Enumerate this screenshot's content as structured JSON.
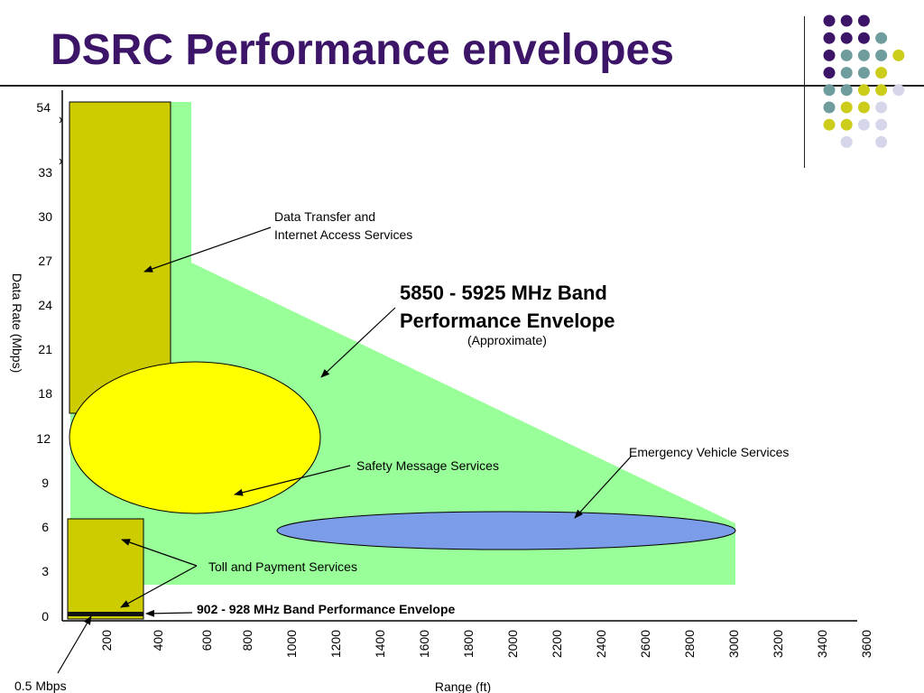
{
  "slide": {
    "title": "DSRC Performance envelopes"
  },
  "y_axis": {
    "label": "Data Rate (Mbps)",
    "ticks": [
      "0",
      "3",
      "6",
      "9",
      "12",
      "18",
      "21",
      "24",
      "27",
      "30",
      "33",
      "54"
    ]
  },
  "x_axis": {
    "label": "Range (ft)",
    "ticks": [
      "200",
      "400",
      "600",
      "800",
      "1000",
      "1200",
      "1400",
      "1600",
      "1800",
      "2000",
      "2200",
      "2400",
      "2600",
      "2800",
      "3000",
      "3200",
      "3400",
      "3600"
    ]
  },
  "annotations": {
    "data_transfer_line1": "Data Transfer and",
    "data_transfer_line2": "Internet Access Services",
    "band_5850_line1": "5850 - 5925 MHz Band",
    "band_5850_line2": "Performance Envelope",
    "band_5850_note": "(Approximate)",
    "emergency": "Emergency Vehicle Services",
    "safety": "Safety Message Services",
    "toll": "Toll and Payment Services",
    "band_902": "902 - 928 MHz  Band Performance Envelope",
    "min_rate": "0.5 Mbps"
  },
  "colors": {
    "title": "#3d1568",
    "envelope_5850": "#99ff99",
    "data_transfer_box": "#cccc00",
    "safety_ellipse": "#ffff00",
    "emergency_ellipse": "#7b9ce8",
    "dot_purple": "#3d1568",
    "dot_teal": "#6f9c9c",
    "dot_olive": "#cccc1a",
    "dot_lavender": "#d6d6ea"
  },
  "decoration": {
    "dot_grid": [
      [
        "purple",
        "purple",
        "purple",
        null,
        null
      ],
      [
        "purple",
        "purple",
        "purple",
        "teal",
        null
      ],
      [
        "purple",
        "teal",
        "teal",
        "teal",
        "olive"
      ],
      [
        "purple",
        "teal",
        "teal",
        "olive",
        null
      ],
      [
        "teal",
        "teal",
        "olive",
        "olive",
        "lavender"
      ],
      [
        "teal",
        "olive",
        "olive",
        "lavender",
        null
      ],
      [
        "olive",
        "olive",
        "lavender",
        "lavender",
        null
      ],
      [
        null,
        "lavender",
        null,
        "lavender",
        null
      ]
    ]
  }
}
